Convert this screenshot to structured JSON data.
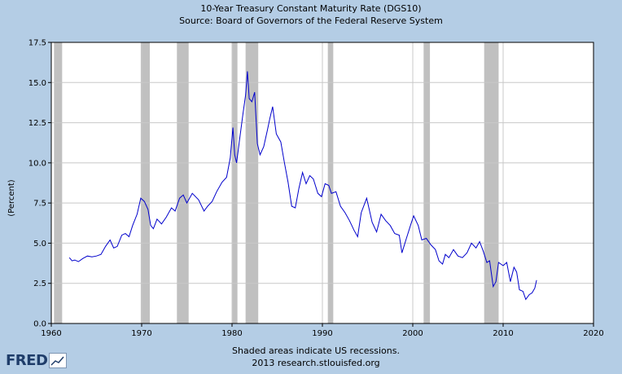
{
  "chart_data": {
    "type": "line",
    "title": "10-Year Treasury Constant Maturity Rate (DGS10)",
    "subtitle": "Source: Board of Governors of the Federal Reserve System",
    "xlabel": "",
    "ylabel": "(Percent)",
    "xlim": [
      1960,
      2020
    ],
    "ylim": [
      0,
      17.5
    ],
    "x_ticks": [
      "1960",
      "1970",
      "1980",
      "1990",
      "2000",
      "2010",
      "2020"
    ],
    "y_ticks": [
      "0.0",
      "2.5",
      "5.0",
      "7.5",
      "10.0",
      "12.5",
      "15.0",
      "17.5"
    ],
    "grid": true,
    "recessions": [
      [
        1960.3,
        1961.2
      ],
      [
        1969.9,
        1970.9
      ],
      [
        1973.9,
        1975.2
      ],
      [
        1980.0,
        1980.6
      ],
      [
        1981.5,
        1982.9
      ],
      [
        1990.6,
        1991.2
      ],
      [
        2001.2,
        2001.9
      ],
      [
        2007.9,
        2009.5
      ]
    ],
    "series": [
      {
        "x": [
          1962.0,
          1962.3,
          1962.6,
          1963.0,
          1963.5,
          1964.0,
          1964.5,
          1965.0,
          1965.5,
          1966.0,
          1966.5,
          1966.9,
          1967.3,
          1967.8,
          1968.2,
          1968.6,
          1969.0,
          1969.5,
          1969.9,
          1970.3,
          1970.7,
          1971.0,
          1971.3,
          1971.7,
          1972.2,
          1972.7,
          1973.3,
          1973.7,
          1974.2,
          1974.6,
          1975.0,
          1975.6,
          1976.3,
          1976.9,
          1977.3,
          1977.8,
          1978.3,
          1978.9,
          1979.4,
          1979.8,
          1980.1,
          1980.3,
          1980.5,
          1980.8,
          1981.2,
          1981.5,
          1981.7,
          1981.9,
          1982.2,
          1982.5,
          1982.8,
          1983.1,
          1983.5,
          1983.9,
          1984.2,
          1984.5,
          1984.9,
          1985.4,
          1985.8,
          1986.2,
          1986.6,
          1987.0,
          1987.4,
          1987.8,
          1988.2,
          1988.6,
          1989.0,
          1989.5,
          1989.9,
          1990.3,
          1990.7,
          1991.0,
          1991.5,
          1992.0,
          1992.5,
          1993.0,
          1993.5,
          1993.9,
          1994.3,
          1994.9,
          1995.5,
          1996.0,
          1996.5,
          1997.0,
          1997.5,
          1998.0,
          1998.5,
          1998.8,
          1999.3,
          1999.8,
          2000.1,
          2000.6,
          2001.0,
          2001.5,
          2002.0,
          2002.5,
          2002.9,
          2003.3,
          2003.6,
          2004.0,
          2004.5,
          2005.0,
          2005.5,
          2006.0,
          2006.5,
          2007.0,
          2007.4,
          2007.8,
          2008.2,
          2008.5,
          2008.9,
          2009.2,
          2009.5,
          2010.0,
          2010.4,
          2010.8,
          2011.2,
          2011.5,
          2011.8,
          2012.2,
          2012.5,
          2012.9,
          2013.2,
          2013.5,
          2013.7
        ],
        "values": [
          4.1,
          3.9,
          3.95,
          3.85,
          4.05,
          4.2,
          4.15,
          4.2,
          4.3,
          4.8,
          5.2,
          4.7,
          4.8,
          5.5,
          5.6,
          5.4,
          6.1,
          6.8,
          7.8,
          7.6,
          7.1,
          6.1,
          5.9,
          6.5,
          6.2,
          6.6,
          7.2,
          7.0,
          7.8,
          8.0,
          7.5,
          8.1,
          7.7,
          7.0,
          7.3,
          7.6,
          8.2,
          8.8,
          9.1,
          10.3,
          12.2,
          10.5,
          10.0,
          11.3,
          13.0,
          14.2,
          15.7,
          14.0,
          13.8,
          14.4,
          11.2,
          10.5,
          11.0,
          12.0,
          12.8,
          13.5,
          11.8,
          11.3,
          10.0,
          8.8,
          7.3,
          7.2,
          8.4,
          9.4,
          8.7,
          9.2,
          9.0,
          8.1,
          7.9,
          8.7,
          8.6,
          8.1,
          8.2,
          7.3,
          6.9,
          6.4,
          5.8,
          5.4,
          6.9,
          7.8,
          6.3,
          5.7,
          6.8,
          6.4,
          6.1,
          5.6,
          5.5,
          4.4,
          5.3,
          6.2,
          6.7,
          6.1,
          5.2,
          5.3,
          4.9,
          4.6,
          3.9,
          3.7,
          4.3,
          4.1,
          4.6,
          4.2,
          4.1,
          4.4,
          5.0,
          4.7,
          5.1,
          4.5,
          3.8,
          3.9,
          2.3,
          2.6,
          3.8,
          3.6,
          3.8,
          2.6,
          3.5,
          3.2,
          2.1,
          2.0,
          1.5,
          1.8,
          1.9,
          2.2,
          2.7
        ]
      }
    ],
    "footnote_line1": "Shaded areas indicate US recessions.",
    "footnote_line2": "2013 research.stlouisfed.org",
    "logo_text": "FRED"
  },
  "colors": {
    "background": "#b4cde5",
    "plot_background": "#ffffff",
    "line": "#0000cc",
    "recession": "#c0c0c0",
    "grid": "#c8c8c8"
  }
}
